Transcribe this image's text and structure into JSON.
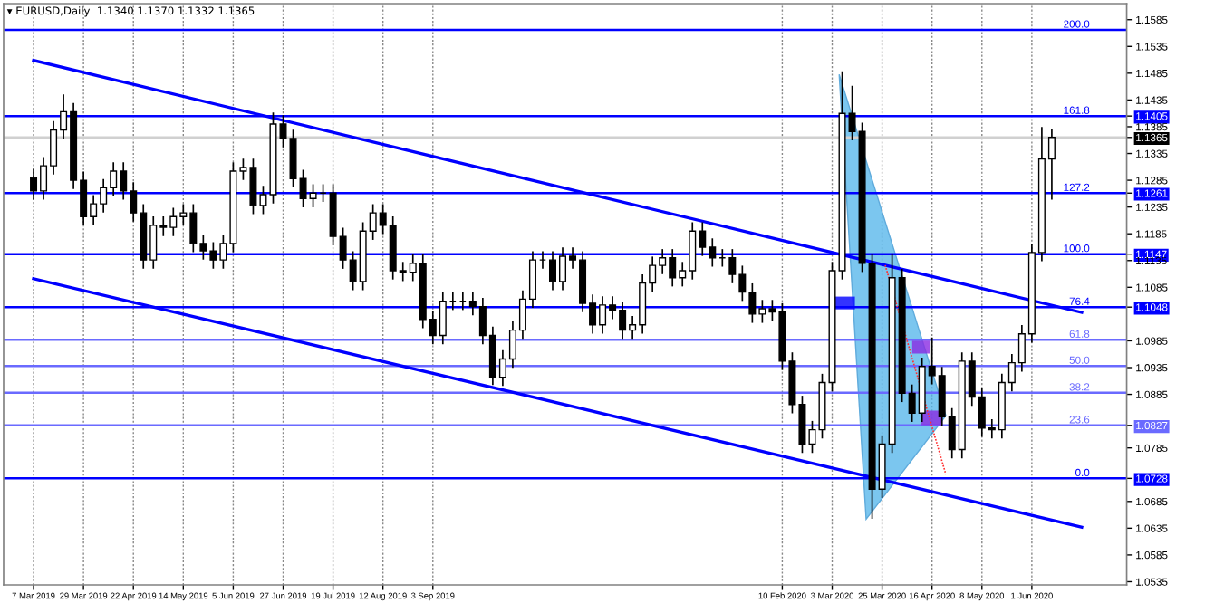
{
  "chart_data": {
    "type": "candlestick",
    "title": "▾ EURUSD,Daily  1.1340 1.1370 1.1332 1.1365",
    "categories": [
      "7 Mar 2019",
      null,
      null,
      null,
      null,
      "29 Mar 2019",
      null,
      null,
      null,
      null,
      "22 Apr 2019",
      null,
      null,
      null,
      null,
      "14 May 2019",
      null,
      null,
      null,
      null,
      "5 Jun 2019",
      null,
      null,
      null,
      null,
      "27 Jun 2019",
      null,
      null,
      null,
      null,
      "19 Jul 2019",
      null,
      null,
      null,
      null,
      "12 Aug 2019",
      null,
      null,
      null,
      null,
      "3 Sep 2019",
      null,
      null,
      null,
      null,
      null,
      null,
      null,
      null,
      null,
      null,
      null,
      null,
      null,
      null,
      null,
      null,
      null,
      null,
      null,
      null,
      null,
      null,
      null,
      null,
      null,
      null,
      null,
      null,
      null,
      null,
      null,
      null,
      null,
      null,
      "10 Feb 2020",
      null,
      null,
      null,
      null,
      "3 Mar 2020",
      null,
      null,
      null,
      null,
      "25 Mar 2020",
      null,
      null,
      null,
      null,
      "16 Apr 2020",
      null,
      null,
      null,
      null,
      "8 May 2020",
      null,
      null,
      null,
      null,
      "1 Jun 2020",
      null,
      null,
      null,
      null,
      null,
      null,
      null,
      null,
      null
    ],
    "ohlc": [
      [
        1.129,
        1.1305,
        1.125,
        1.1265
      ],
      [
        1.1265,
        1.1327,
        1.125,
        1.1312
      ],
      [
        1.1312,
        1.1394,
        1.1297,
        1.1379
      ],
      [
        1.1379,
        1.1444,
        1.1364,
        1.1413
      ],
      [
        1.1413,
        1.1428,
        1.127,
        1.1285
      ],
      [
        1.1285,
        1.13,
        1.1202,
        1.1217
      ],
      [
        1.1217,
        1.1256,
        1.1202,
        1.1241
      ],
      [
        1.1241,
        1.1286,
        1.1226,
        1.1271
      ],
      [
        1.1271,
        1.1317,
        1.1256,
        1.1302
      ],
      [
        1.1302,
        1.1317,
        1.125,
        1.1265
      ],
      [
        1.1265,
        1.128,
        1.1209,
        1.1224
      ],
      [
        1.1224,
        1.1239,
        1.1121,
        1.1136
      ],
      [
        1.1136,
        1.1216,
        1.1121,
        1.1201
      ],
      [
        1.1201,
        1.1216,
        1.1182,
        1.1197
      ],
      [
        1.1197,
        1.1232,
        1.1182,
        1.1217
      ],
      [
        1.1217,
        1.1239,
        1.1202,
        1.1224
      ],
      [
        1.1224,
        1.1239,
        1.1152,
        1.1167
      ],
      [
        1.1167,
        1.1182,
        1.1138,
        1.1153
      ],
      [
        1.1153,
        1.1168,
        1.1121,
        1.1136
      ],
      [
        1.1136,
        1.1182,
        1.1121,
        1.1167
      ],
      [
        1.1167,
        1.1317,
        1.1152,
        1.1302
      ],
      [
        1.1302,
        1.1324,
        1.1287,
        1.1309
      ],
      [
        1.1309,
        1.1324,
        1.1223,
        1.1238
      ],
      [
        1.1238,
        1.1273,
        1.1223,
        1.1258
      ],
      [
        1.1258,
        1.141,
        1.1243,
        1.139
      ],
      [
        1.139,
        1.1405,
        1.1348,
        1.1363
      ],
      [
        1.1363,
        1.1378,
        1.1273,
        1.1288
      ],
      [
        1.1288,
        1.1303,
        1.1236,
        1.1251
      ],
      [
        1.1251,
        1.1276,
        1.1236,
        1.1261
      ],
      [
        1.1261,
        1.1276,
        1.1246,
        1.1261
      ],
      [
        1.1261,
        1.1276,
        1.1165,
        1.118
      ],
      [
        1.118,
        1.1195,
        1.1121,
        1.1136
      ],
      [
        1.1136,
        1.1151,
        1.1081,
        1.1096
      ],
      [
        1.1096,
        1.1205,
        1.1081,
        1.119
      ],
      [
        1.119,
        1.1239,
        1.1175,
        1.1224
      ],
      [
        1.1224,
        1.1239,
        1.1186,
        1.1201
      ],
      [
        1.1201,
        1.1216,
        1.1101,
        1.1116
      ],
      [
        1.1116,
        1.1131,
        1.1098,
        1.1113
      ],
      [
        1.1113,
        1.1145,
        1.1098,
        1.113
      ],
      [
        1.113,
        1.1145,
        1.101,
        1.1025
      ],
      [
        1.1025,
        1.104,
        1.098,
        1.0995
      ],
      [
        1.0995,
        1.1074,
        1.098,
        1.1059
      ],
      [
        1.1059,
        1.1074,
        1.1044,
        1.1059
      ],
      [
        1.1059,
        1.1074,
        1.1044,
        1.1059
      ],
      [
        1.1059,
        1.1074,
        1.1034,
        1.1049
      ],
      [
        1.1049,
        1.1064,
        1.098,
        1.0995
      ],
      [
        1.0995,
        1.101,
        1.0904,
        1.0917
      ],
      [
        1.0917,
        1.0966,
        1.0902,
        1.0951
      ],
      [
        1.0951,
        1.102,
        1.0936,
        1.1005
      ],
      [
        1.1005,
        1.1078,
        1.099,
        1.1063
      ],
      [
        1.1063,
        1.1151,
        1.1048,
        1.1136
      ],
      [
        1.1136,
        1.1151,
        1.1121,
        1.1136
      ],
      [
        1.1136,
        1.1151,
        1.1081,
        1.1096
      ],
      [
        1.1096,
        1.1158,
        1.1081,
        1.1143
      ],
      [
        1.1143,
        1.1158,
        1.1121,
        1.1136
      ],
      [
        1.1136,
        1.1151,
        1.104,
        1.1055
      ],
      [
        1.1055,
        1.107,
        1.1,
        1.1015
      ],
      [
        1.1015,
        1.1067,
        1.1,
        1.1052
      ],
      [
        1.1052,
        1.1067,
        1.1027,
        1.1042
      ],
      [
        1.1042,
        1.1057,
        1.099,
        1.1005
      ],
      [
        1.1005,
        1.103,
        1.099,
        1.1015
      ],
      [
        1.1015,
        1.1108,
        1.1,
        1.1093
      ],
      [
        1.1093,
        1.1141,
        1.1078,
        1.1126
      ],
      [
        1.1126,
        1.1155,
        1.1111,
        1.114
      ],
      [
        1.114,
        1.1155,
        1.1088,
        1.1103
      ],
      [
        1.1103,
        1.1131,
        1.1088,
        1.1116
      ],
      [
        1.1116,
        1.1205,
        1.1101,
        1.119
      ],
      [
        1.119,
        1.1205,
        1.1145,
        1.116
      ],
      [
        1.116,
        1.1175,
        1.1125,
        1.114
      ],
      [
        1.114,
        1.1155,
        1.1125,
        1.114
      ],
      [
        1.114,
        1.1155,
        1.1094,
        1.1109
      ],
      [
        1.1109,
        1.1124,
        1.1061,
        1.1076
      ],
      [
        1.1076,
        1.1091,
        1.102,
        1.1035
      ],
      [
        1.1035,
        1.106,
        1.102,
        1.1045
      ],
      [
        1.1045,
        1.106,
        1.1024,
        1.1039
      ],
      [
        1.1039,
        1.1054,
        1.0932,
        1.0947
      ],
      [
        1.0947,
        1.0962,
        1.0851,
        1.0866
      ],
      [
        1.0866,
        1.0881,
        1.0777,
        1.0792
      ],
      [
        1.0792,
        1.0834,
        1.0777,
        1.0819
      ],
      [
        1.0819,
        1.0922,
        1.0804,
        1.0907
      ],
      [
        1.0907,
        1.1131,
        1.0892,
        1.1116
      ],
      [
        1.1116,
        1.1487,
        1.1101,
        1.141
      ],
      [
        1.141,
        1.146,
        1.1361,
        1.1376
      ],
      [
        1.1376,
        1.1391,
        1.1115,
        1.113
      ],
      [
        1.113,
        1.1145,
        1.0654,
        1.0708
      ],
      [
        1.0708,
        1.0807,
        1.0693,
        1.0792
      ],
      [
        1.0792,
        1.1147,
        1.0777,
        1.1103
      ],
      [
        1.1103,
        1.1118,
        1.0872,
        1.0887
      ],
      [
        1.0887,
        1.0902,
        1.0835,
        1.085
      ],
      [
        1.085,
        1.0952,
        1.0835,
        1.0937
      ],
      [
        1.0937,
        1.099,
        1.0905,
        1.092
      ],
      [
        1.092,
        1.0935,
        1.0828,
        1.0843
      ],
      [
        1.0843,
        1.0858,
        1.0767,
        1.0782
      ],
      [
        1.0782,
        1.0962,
        1.0767,
        1.0947
      ],
      [
        1.0947,
        1.0962,
        1.0865,
        1.088
      ],
      [
        1.088,
        1.0895,
        1.0807,
        1.0822
      ],
      [
        1.0822,
        1.0837,
        1.0804,
        1.0819
      ],
      [
        1.0819,
        1.0922,
        1.0804,
        1.0907
      ],
      [
        1.0907,
        1.0959,
        1.0892,
        1.0944
      ],
      [
        1.0944,
        1.1013,
        1.0929,
        1.0998
      ],
      [
        1.0998,
        1.1165,
        1.0983,
        1.115
      ],
      [
        1.115,
        1.1383,
        1.1135,
        1.1325
      ],
      [
        1.1325,
        1.1379,
        1.125,
        1.1365
      ],
      null,
      null,
      null,
      null,
      null,
      null,
      null
    ],
    "series": [
      {
        "type": "line",
        "color": "#0000ff",
        "values": [
          1.1509,
          null,
          null,
          null,
          null,
          null,
          null,
          null,
          null,
          null,
          null,
          null,
          null,
          null,
          null,
          null,
          null,
          null,
          null,
          null,
          null,
          null,
          null,
          null,
          null,
          null,
          null,
          null,
          null,
          null,
          null,
          null,
          null,
          null,
          null,
          null,
          null,
          null,
          null,
          null,
          null,
          null,
          null,
          null,
          null,
          null,
          null,
          null,
          null,
          null,
          null,
          null,
          null,
          null,
          null,
          null,
          null,
          null,
          null,
          null,
          null,
          null,
          null,
          null,
          null,
          null,
          null,
          null,
          null,
          null,
          null,
          null,
          null,
          null,
          null,
          null,
          null,
          null,
          null,
          null,
          null,
          null,
          null,
          null,
          null,
          null,
          null,
          null,
          null,
          null,
          null,
          null,
          null,
          null,
          null,
          null,
          null,
          null,
          null,
          null,
          null,
          null,
          null,
          null,
          null,
          1.1038,
          null,
          null,
          null,
          null
        ]
      },
      {
        "type": "line",
        "color": "#0000ff",
        "values": [
          1.1101,
          null,
          null,
          null,
          null,
          null,
          null,
          null,
          null,
          null,
          null,
          null,
          null,
          null,
          null,
          null,
          null,
          null,
          null,
          null,
          null,
          null,
          null,
          null,
          null,
          null,
          null,
          null,
          null,
          null,
          null,
          null,
          null,
          null,
          null,
          null,
          null,
          null,
          null,
          null,
          null,
          null,
          null,
          null,
          null,
          null,
          null,
          null,
          null,
          null,
          null,
          null,
          null,
          null,
          null,
          null,
          null,
          null,
          null,
          null,
          null,
          null,
          null,
          null,
          null,
          null,
          null,
          null,
          null,
          null,
          null,
          null,
          null,
          null,
          null,
          null,
          null,
          null,
          null,
          null,
          null,
          null,
          null,
          null,
          null,
          null,
          null,
          null,
          null,
          null,
          null,
          null,
          null,
          null,
          null,
          null,
          null,
          null,
          null,
          null,
          null,
          null,
          null,
          null,
          null,
          1.0637,
          null,
          null,
          null,
          null
        ]
      }
    ],
    "ylim": [
      1.0529,
      1.1615
    ],
    "yticks": [
      1.1585,
      1.1535,
      1.1485,
      1.1435,
      1.1405,
      1.1385,
      1.1365,
      1.1335,
      1.1285,
      1.1261,
      1.1235,
      1.1185,
      1.1147,
      1.1135,
      1.1085,
      1.1048,
      1.0985,
      1.0935,
      1.0885,
      1.0827,
      1.0785,
      1.0728,
      1.0685,
      1.0635,
      1.0585,
      1.0535
    ],
    "ref_lines": [
      {
        "axis": "y",
        "value": 1.1566,
        "color": "#0000ff"
      },
      {
        "axis": "y",
        "value": 1.1405,
        "color": "#0000ff"
      },
      {
        "axis": "y",
        "value": 1.1365,
        "color": "#d0d0d0"
      },
      {
        "axis": "y",
        "value": 1.1261,
        "color": "#0000ff"
      },
      {
        "axis": "y",
        "value": 1.1147,
        "color": "#0000ff"
      },
      {
        "axis": "y",
        "value": 1.1048,
        "color": "#0000ff"
      },
      {
        "axis": "y",
        "value": 1.0987,
        "color": "#6a6aff"
      },
      {
        "axis": "y",
        "value": 1.0938,
        "color": "#6a6aff"
      },
      {
        "axis": "y",
        "value": 1.0888,
        "color": "#6a6aff"
      },
      {
        "axis": "y",
        "value": 1.0827,
        "color": "#6a6aff"
      },
      {
        "axis": "y",
        "value": 1.0728,
        "color": "#0000ff"
      }
    ],
    "annotations": [
      {
        "text": "200.0",
        "y": 1.1566
      },
      {
        "text": "161.8",
        "y": 1.1405
      },
      {
        "text": "127.2",
        "y": 1.1261
      },
      {
        "text": "100.0",
        "y": 1.1147
      },
      {
        "text": "76.4",
        "y": 1.1048
      },
      {
        "text": "61.8",
        "y": 1.0987
      },
      {
        "text": "50.0",
        "y": 1.0938
      },
      {
        "text": "38.2",
        "y": 1.0888
      },
      {
        "text": "23.6",
        "y": 1.0827
      },
      {
        "text": "0.0",
        "y": 1.0728
      }
    ],
    "grid": "x"
  }
}
